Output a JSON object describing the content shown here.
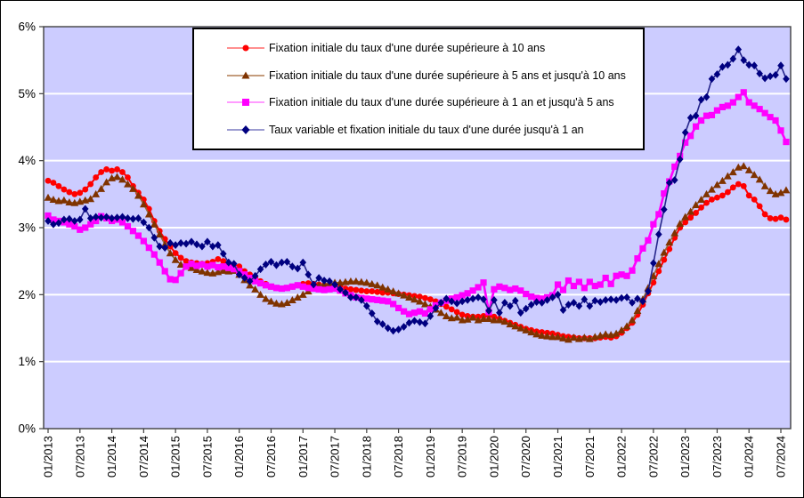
{
  "chart_data": {
    "type": "line",
    "title": "",
    "background_color": "#CCCCFF",
    "gridline_color": "#FFFFFF",
    "legend_position": "top-center-inside",
    "y_axis": {
      "min": 0,
      "max": 6,
      "unit": "%",
      "tick_labels": [
        "0%",
        "1%",
        "2%",
        "3%",
        "4%",
        "5%",
        "6%"
      ]
    },
    "x_axis": {
      "first_month": "01/2013",
      "months_count": 140,
      "tick_every_months": 6,
      "tick_labels": [
        "01/2013",
        "07/2013",
        "01/2014",
        "07/2014",
        "01/2015",
        "07/2015",
        "01/2016",
        "07/2016",
        "01/2017",
        "07/2017",
        "01/2018",
        "07/2018",
        "01/2019",
        "07/2019",
        "01/2020",
        "07/2020",
        "01/2021",
        "07/2021",
        "01/2022",
        "07/2022",
        "01/2023",
        "07/2023",
        "01/2024",
        "07/2024"
      ]
    },
    "series": [
      {
        "id": "sup-10-ans",
        "label": "Fixation initiale du taux d'une durée supérieure à 10 ans",
        "color": "#FF0000",
        "line_color": "#FF0000",
        "marker": "circle",
        "values": [
          3.7,
          3.67,
          3.62,
          3.57,
          3.53,
          3.5,
          3.52,
          3.57,
          3.65,
          3.75,
          3.83,
          3.87,
          3.85,
          3.87,
          3.83,
          3.75,
          3.62,
          3.52,
          3.42,
          3.28,
          3.1,
          2.95,
          2.83,
          2.72,
          2.62,
          2.55,
          2.5,
          2.48,
          2.47,
          2.46,
          2.47,
          2.49,
          2.53,
          2.5,
          2.45,
          2.42,
          2.42,
          2.35,
          2.3,
          2.26,
          2.2,
          2.16,
          2.12,
          2.1,
          2.09,
          2.1,
          2.12,
          2.14,
          2.16,
          2.17,
          2.16,
          2.15,
          2.14,
          2.14,
          2.13,
          2.11,
          2.09,
          2.08,
          2.07,
          2.06,
          2.05,
          2.05,
          2.04,
          2.03,
          2.03,
          2.02,
          2.01,
          2.0,
          1.99,
          1.98,
          1.97,
          1.95,
          1.93,
          1.9,
          1.86,
          1.82,
          1.78,
          1.74,
          1.7,
          1.68,
          1.67,
          1.67,
          1.68,
          1.69,
          1.67,
          1.64,
          1.61,
          1.58,
          1.55,
          1.52,
          1.49,
          1.47,
          1.45,
          1.44,
          1.43,
          1.42,
          1.4,
          1.38,
          1.37,
          1.36,
          1.35,
          1.35,
          1.35,
          1.35,
          1.36,
          1.37,
          1.36,
          1.38,
          1.43,
          1.5,
          1.58,
          1.7,
          1.85,
          2.02,
          2.18,
          2.35,
          2.52,
          2.68,
          2.85,
          3.0,
          3.08,
          3.15,
          3.22,
          3.3,
          3.37,
          3.42,
          3.45,
          3.48,
          3.53,
          3.6,
          3.65,
          3.62,
          3.48,
          3.42,
          3.32,
          3.2,
          3.14,
          3.13,
          3.15,
          3.12
        ]
      },
      {
        "id": "5-10-ans",
        "label": "Fixation initiale du taux d'une durée supérieure à 5 ans et  jusqu'à 10 ans",
        "color": "#7F3300",
        "line_color": "#996633",
        "marker": "triangle",
        "values": [
          3.45,
          3.42,
          3.4,
          3.41,
          3.38,
          3.37,
          3.39,
          3.41,
          3.43,
          3.5,
          3.58,
          3.68,
          3.74,
          3.76,
          3.72,
          3.65,
          3.58,
          3.48,
          3.35,
          3.2,
          3.05,
          2.9,
          2.75,
          2.62,
          2.52,
          2.45,
          2.42,
          2.4,
          2.37,
          2.35,
          2.33,
          2.32,
          2.34,
          2.36,
          2.35,
          2.36,
          2.3,
          2.22,
          2.14,
          2.08,
          2.0,
          1.94,
          1.9,
          1.87,
          1.86,
          1.88,
          1.92,
          1.96,
          2.0,
          2.05,
          2.1,
          2.14,
          2.16,
          2.17,
          2.18,
          2.18,
          2.19,
          2.2,
          2.2,
          2.19,
          2.18,
          2.16,
          2.14,
          2.11,
          2.08,
          2.05,
          2.02,
          1.99,
          1.96,
          1.93,
          1.9,
          1.86,
          1.82,
          1.78,
          1.73,
          1.68,
          1.65,
          1.66,
          1.62,
          1.63,
          1.66,
          1.62,
          1.64,
          1.64,
          1.62,
          1.62,
          1.6,
          1.56,
          1.53,
          1.5,
          1.47,
          1.44,
          1.41,
          1.39,
          1.38,
          1.37,
          1.37,
          1.35,
          1.33,
          1.36,
          1.34,
          1.36,
          1.34,
          1.37,
          1.39,
          1.41,
          1.4,
          1.42,
          1.47,
          1.53,
          1.62,
          1.76,
          1.93,
          2.1,
          2.28,
          2.46,
          2.63,
          2.78,
          2.92,
          3.06,
          3.16,
          3.24,
          3.34,
          3.42,
          3.5,
          3.57,
          3.64,
          3.7,
          3.77,
          3.83,
          3.9,
          3.92,
          3.86,
          3.79,
          3.72,
          3.62,
          3.55,
          3.5,
          3.52,
          3.56
        ]
      },
      {
        "id": "1-5-ans",
        "label": "Fixation initiale du taux d'une durée supérieure à 1 an et  jusqu'à 5 ans",
        "color": "#FF00FF",
        "line_color": "#FF00FF",
        "marker": "square",
        "values": [
          3.18,
          3.12,
          3.1,
          3.08,
          3.05,
          3.02,
          2.97,
          3.0,
          3.05,
          3.1,
          3.17,
          3.14,
          3.1,
          3.12,
          3.08,
          3.02,
          2.95,
          2.88,
          2.8,
          2.7,
          2.6,
          2.48,
          2.35,
          2.23,
          2.22,
          2.32,
          2.42,
          2.46,
          2.43,
          2.45,
          2.42,
          2.44,
          2.41,
          2.42,
          2.4,
          2.38,
          2.35,
          2.3,
          2.25,
          2.2,
          2.17,
          2.14,
          2.12,
          2.1,
          2.09,
          2.1,
          2.12,
          2.14,
          2.12,
          2.1,
          2.09,
          2.08,
          2.07,
          2.08,
          2.09,
          2.06,
          2.02,
          1.99,
          1.96,
          1.95,
          1.94,
          1.93,
          1.92,
          1.91,
          1.9,
          1.86,
          1.8,
          1.75,
          1.71,
          1.73,
          1.75,
          1.72,
          1.78,
          1.84,
          1.88,
          1.91,
          1.94,
          1.96,
          1.99,
          2.02,
          2.06,
          2.11,
          2.18,
          1.74,
          2.08,
          2.12,
          2.1,
          2.07,
          2.09,
          2.06,
          2.01,
          1.97,
          1.95,
          1.94,
          1.96,
          1.99,
          2.15,
          2.07,
          2.21,
          2.13,
          2.19,
          2.1,
          2.19,
          2.13,
          2.15,
          2.25,
          2.16,
          2.28,
          2.3,
          2.28,
          2.36,
          2.54,
          2.69,
          2.81,
          3.05,
          3.2,
          3.51,
          3.69,
          3.91,
          4.07,
          4.27,
          4.37,
          4.51,
          4.6,
          4.67,
          4.68,
          4.75,
          4.8,
          4.82,
          4.87,
          4.95,
          5.02,
          4.87,
          4.82,
          4.77,
          4.71,
          4.65,
          4.6,
          4.45,
          4.28
        ]
      },
      {
        "id": "variable-1-an",
        "label": "Taux variable et fixation initiale du taux d'une durée jusqu'à 1 an",
        "color": "#000080",
        "line_color": "#26268C",
        "marker": "diamond",
        "values": [
          3.1,
          3.05,
          3.07,
          3.12,
          3.13,
          3.1,
          3.12,
          3.28,
          3.14,
          3.16,
          3.15,
          3.16,
          3.14,
          3.15,
          3.16,
          3.14,
          3.13,
          3.14,
          3.08,
          3.0,
          2.85,
          2.72,
          2.7,
          2.77,
          2.74,
          2.77,
          2.76,
          2.79,
          2.75,
          2.72,
          2.79,
          2.72,
          2.74,
          2.61,
          2.48,
          2.46,
          2.3,
          2.25,
          2.2,
          2.28,
          2.38,
          2.45,
          2.49,
          2.44,
          2.48,
          2.49,
          2.42,
          2.39,
          2.48,
          2.3,
          2.15,
          2.25,
          2.21,
          2.2,
          2.15,
          2.08,
          2.03,
          1.96,
          1.96,
          1.92,
          1.83,
          1.72,
          1.6,
          1.56,
          1.5,
          1.46,
          1.48,
          1.52,
          1.58,
          1.61,
          1.59,
          1.57,
          1.68,
          1.8,
          1.88,
          1.94,
          1.9,
          1.87,
          1.9,
          1.92,
          1.94,
          1.96,
          1.93,
          1.76,
          1.92,
          1.73,
          1.88,
          1.83,
          1.91,
          1.73,
          1.79,
          1.85,
          1.89,
          1.88,
          1.92,
          1.96,
          2.0,
          1.77,
          1.85,
          1.88,
          1.83,
          1.93,
          1.83,
          1.91,
          1.89,
          1.92,
          1.93,
          1.92,
          1.95,
          1.96,
          1.88,
          1.94,
          1.9,
          2.05,
          2.47,
          2.9,
          3.27,
          3.67,
          3.71,
          4.02,
          4.42,
          4.64,
          4.67,
          4.91,
          4.95,
          5.22,
          5.29,
          5.4,
          5.43,
          5.52,
          5.66,
          5.5,
          5.43,
          5.42,
          5.3,
          5.23,
          5.26,
          5.28,
          5.42,
          5.22
        ]
      }
    ]
  }
}
